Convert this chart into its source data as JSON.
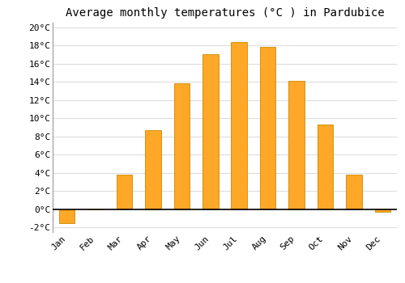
{
  "title": "Average monthly temperatures (°C ) in Pardubice",
  "months": [
    "Jan",
    "Feb",
    "Mar",
    "Apr",
    "May",
    "Jun",
    "Jul",
    "Aug",
    "Sep",
    "Oct",
    "Nov",
    "Dec"
  ],
  "values": [
    -1.5,
    0.0,
    3.8,
    8.7,
    13.8,
    17.0,
    18.4,
    17.8,
    14.1,
    9.3,
    3.8,
    -0.3
  ],
  "bar_color": "#FFA726",
  "bar_edge_color": "#CC8800",
  "ylim": [
    -2.5,
    20.5
  ],
  "yticks": [
    -2,
    0,
    2,
    4,
    6,
    8,
    10,
    12,
    14,
    16,
    18,
    20
  ],
  "ytick_labels": [
    "-2°C",
    "0°C",
    "2°C",
    "4°C",
    "6°C",
    "8°C",
    "10°C",
    "12°C",
    "14°C",
    "16°C",
    "18°C",
    "20°C"
  ],
  "background_color": "#FFFFFF",
  "grid_color": "#DDDDDD",
  "title_fontsize": 10,
  "tick_fontsize": 8,
  "font_family": "monospace",
  "bar_width": 0.55
}
